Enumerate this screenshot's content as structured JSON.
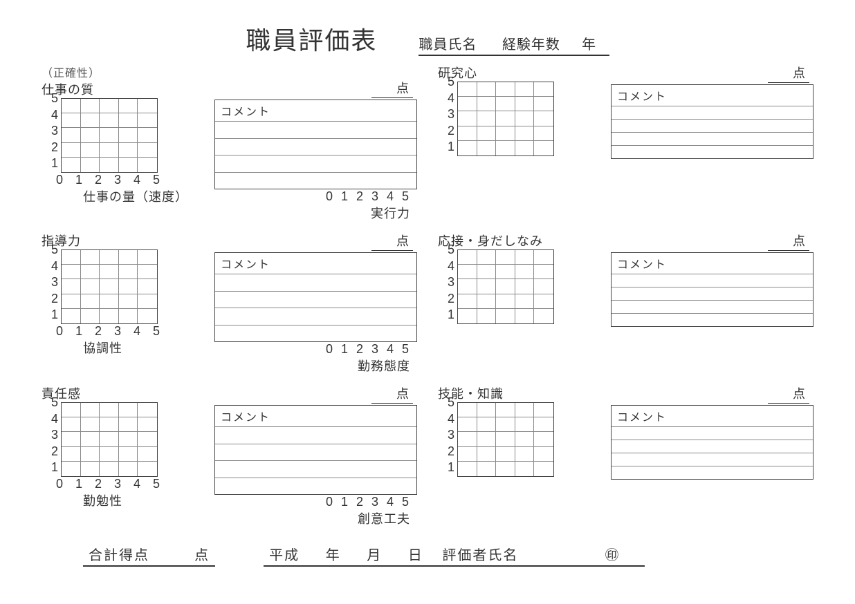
{
  "title": "職員評価表",
  "header": {
    "name_label": "職員氏名",
    "exp_label": "経験年数",
    "exp_unit": "年"
  },
  "axis": {
    "yticks": [
      "5",
      "4",
      "3",
      "2",
      "1"
    ],
    "xticks": [
      "0",
      "1",
      "2",
      "3",
      "4",
      "5"
    ]
  },
  "score_suffix": "点",
  "comment_label": "コメント",
  "subnote_accuracy": "（正確性）",
  "blocks": [
    {
      "y_label": "仕事の質",
      "x_label": "仕事の量（速度）",
      "x2_label": "実行力",
      "has_xaxis": true,
      "has_subnote": true
    },
    {
      "y_label": "研究心",
      "x_label": "",
      "x2_label": "",
      "has_xaxis": false,
      "has_subnote": false
    },
    {
      "y_label": "指導力",
      "x_label": "協調性",
      "x2_label": "勤務態度",
      "has_xaxis": true,
      "has_subnote": false
    },
    {
      "y_label": "応接・身だしなみ",
      "x_label": "",
      "x2_label": "",
      "has_xaxis": false,
      "has_subnote": false
    },
    {
      "y_label": "責任感",
      "x_label": "勤勉性",
      "x2_label": "創意工夫",
      "has_xaxis": true,
      "has_subnote": false
    },
    {
      "y_label": "技能・知識",
      "x_label": "",
      "x2_label": "",
      "has_xaxis": false,
      "has_subnote": false
    }
  ],
  "footer": {
    "total_label": "合計得点",
    "total_unit": "点",
    "era": "平成",
    "year_unit": "年",
    "month_unit": "月",
    "day_unit": "日",
    "evaluator_label": "評価者氏名",
    "stamp": "㊞"
  },
  "style": {
    "border_color": "#444444",
    "grid_inner_color": "#888888",
    "text_color": "#333333",
    "background": "#ffffff",
    "chart_cols": 5,
    "chart_rows": 5,
    "comment_rows": 5
  }
}
